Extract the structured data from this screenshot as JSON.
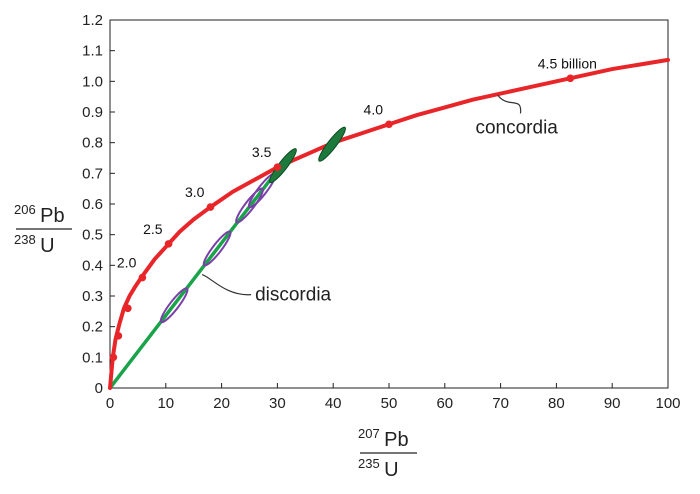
{
  "chart_data": {
    "type": "line",
    "xlabel": {
      "sup": "207",
      "sym": "Pb",
      "den_sup": "235",
      "den_sym": "U"
    },
    "ylabel": {
      "sup": "206",
      "sym": "Pb",
      "den_sup": "238",
      "den_sym": "U"
    },
    "xlim": [
      0,
      100
    ],
    "ylim": [
      0,
      1.2
    ],
    "xticks": [
      0,
      10,
      20,
      30,
      40,
      50,
      60,
      70,
      80,
      90,
      100
    ],
    "yticks": [
      "0",
      "0.1",
      "0.2",
      "0.3",
      "0.4",
      "0.5",
      "0.6",
      "0.7",
      "0.8",
      "0.9",
      "1.0",
      "1.1",
      "1.2"
    ],
    "grid": false,
    "series": [
      {
        "name": "concordia",
        "color": "#e8262a",
        "x": [
          0,
          0.5,
          1.0,
          1.7,
          2.5,
          3.5,
          4.5,
          6.0,
          8.0,
          10.0,
          12.5,
          15.0,
          18.0,
          22.0,
          26.0,
          30.0,
          35.0,
          40.0,
          45.0,
          50.0,
          55.0,
          60.0,
          65.0,
          70.0,
          75.0,
          80.0,
          85.0,
          90.0,
          95.0,
          100.0
        ],
        "y": [
          0,
          0.1,
          0.16,
          0.21,
          0.26,
          0.3,
          0.33,
          0.37,
          0.42,
          0.46,
          0.51,
          0.55,
          0.59,
          0.64,
          0.68,
          0.72,
          0.76,
          0.8,
          0.83,
          0.86,
          0.89,
          0.915,
          0.94,
          0.96,
          0.98,
          1.0,
          1.02,
          1.04,
          1.055,
          1.07
        ]
      },
      {
        "name": "discordia",
        "color": "#1aa34a",
        "x": [
          0,
          31.5
        ],
        "y": [
          0,
          0.745
        ]
      }
    ],
    "age_markers": [
      {
        "x": 0.6,
        "y": 0.1,
        "label": ""
      },
      {
        "x": 1.5,
        "y": 0.17,
        "label": ""
      },
      {
        "x": 3.2,
        "y": 0.26,
        "label": ""
      },
      {
        "x": 5.8,
        "y": 0.36,
        "label": "2.0"
      },
      {
        "x": 10.5,
        "y": 0.47,
        "label": "2.5"
      },
      {
        "x": 18.0,
        "y": 0.59,
        "label": "3.0"
      },
      {
        "x": 30.0,
        "y": 0.72,
        "label": "3.5"
      },
      {
        "x": 50.0,
        "y": 0.86,
        "label": "4.0"
      },
      {
        "x": 82.5,
        "y": 1.01,
        "label": "4.5 billion"
      }
    ],
    "marker_color": "#e8262a",
    "ellipses": [
      {
        "cx": 11.5,
        "cy": 0.27,
        "rx": 3.8,
        "ry": 0.045,
        "kind": "outline",
        "color": "#7b3fa8"
      },
      {
        "cx": 19.2,
        "cy": 0.455,
        "rx": 3.8,
        "ry": 0.045,
        "kind": "outline",
        "color": "#7b3fa8"
      },
      {
        "cx": 25.0,
        "cy": 0.595,
        "rx": 3.8,
        "ry": 0.045,
        "kind": "outline",
        "color": "#7b3fa8"
      },
      {
        "cx": 27.3,
        "cy": 0.645,
        "rx": 3.8,
        "ry": 0.045,
        "kind": "outline",
        "color": "#7b3fa8"
      },
      {
        "cx": 31.0,
        "cy": 0.725,
        "rx": 3.8,
        "ry": 0.045,
        "kind": "filled",
        "color": "#1d7a3c"
      },
      {
        "cx": 39.8,
        "cy": 0.795,
        "rx": 3.8,
        "ry": 0.045,
        "kind": "filled",
        "color": "#1d7a3c"
      }
    ],
    "annotations": [
      {
        "text": "concordia",
        "x": 65.5,
        "y": 0.83,
        "pointer_to": [
          69.5,
          0.955
        ]
      },
      {
        "text": "discordia",
        "x": 26.0,
        "y": 0.285,
        "pointer_to": [
          16.5,
          0.37
        ]
      }
    ]
  }
}
